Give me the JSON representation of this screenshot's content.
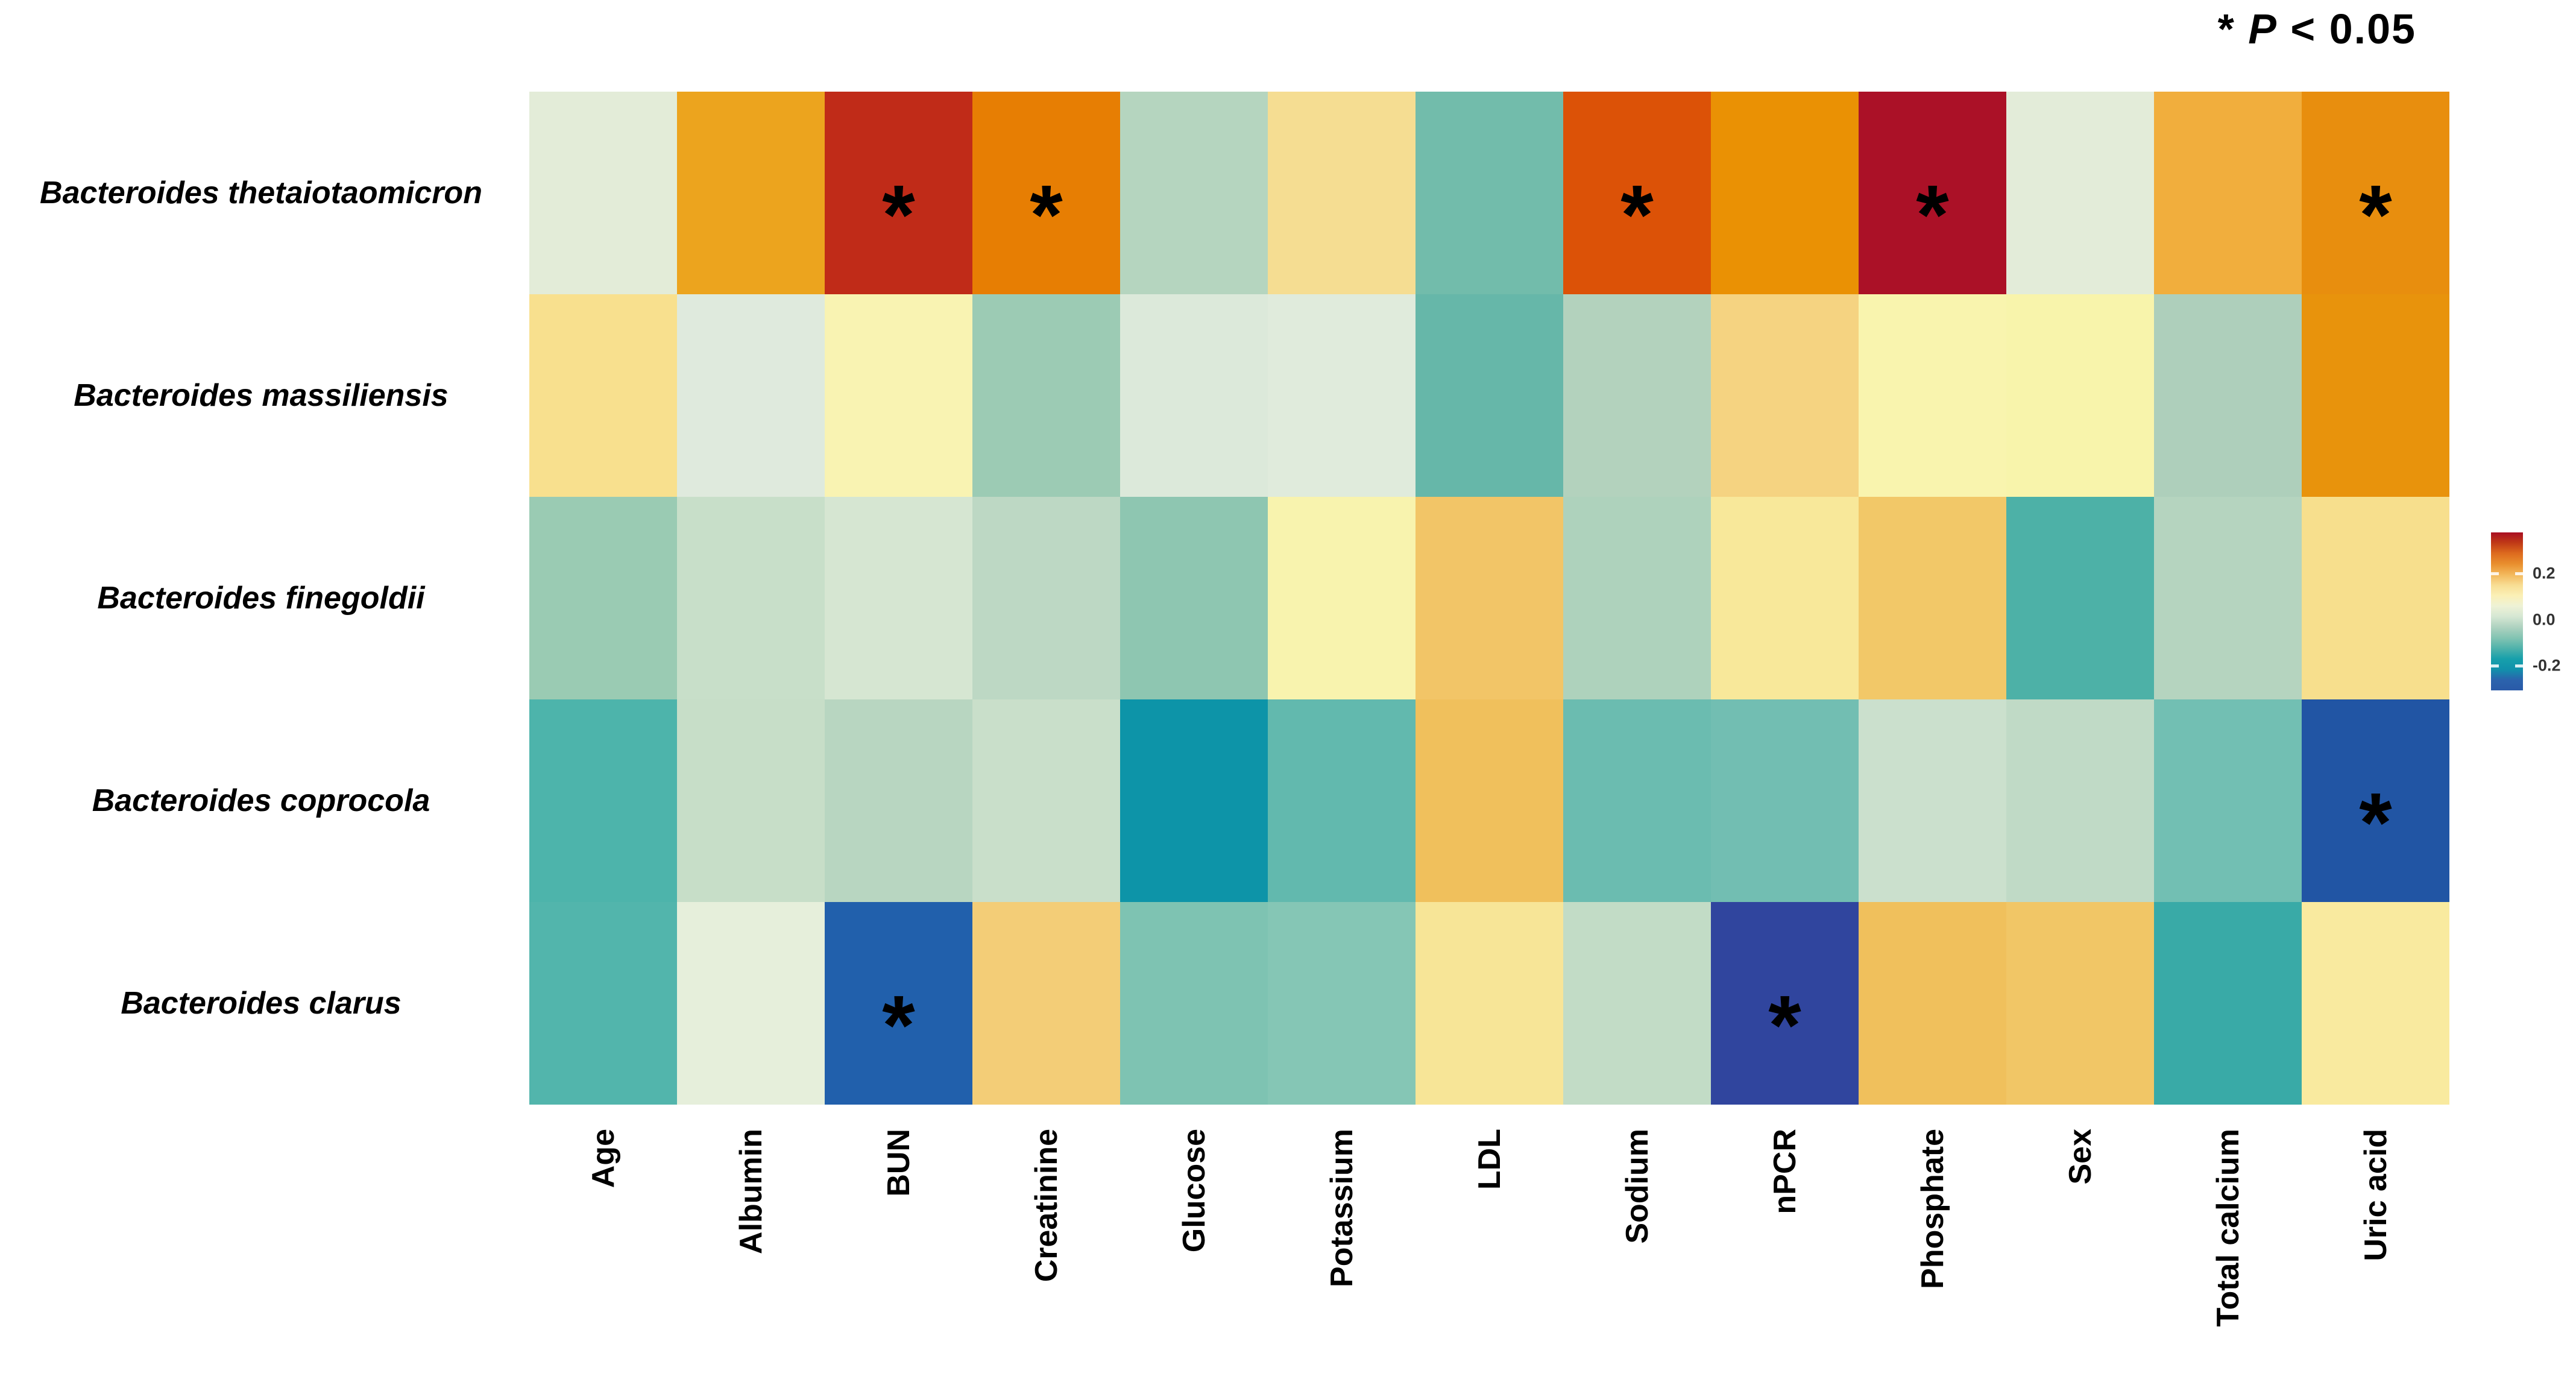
{
  "annotation": {
    "star": "*",
    "variable": "P",
    "comparison": "< 0.05"
  },
  "chart_data": {
    "type": "heatmap",
    "title": "",
    "legend_position": "right",
    "significance_marker": "*",
    "significance_note": "* P < 0.05",
    "rows": [
      "Bacteroides thetaiotaomicron",
      "Bacteroides massiliensis",
      "Bacteroides finegoldii",
      "Bacteroides coprocola",
      "Bacteroides clarus"
    ],
    "columns": [
      "Age",
      "Albumin",
      "BUN",
      "Creatinine",
      "Glucose",
      "Potassium",
      "LDL",
      "Sodium",
      "nPCR",
      "Phosphate",
      "Sex",
      "Total calcium",
      "Uric acid"
    ],
    "cell_colors": [
      [
        "#e3ecd8",
        "#eca41e",
        "#c02b18",
        "#e77e03",
        "#b5d5bf",
        "#f5dd92",
        "#72bcab",
        "#dc5207",
        "#ea9104",
        "#ab1127",
        "#e3ecd9",
        "#f1ae3d",
        "#e88e0e"
      ],
      [
        "#f8e08e",
        "#dfeadd",
        "#f9f3b2",
        "#9ccbb4",
        "#dce9da",
        "#e0ebdc",
        "#66b7a9",
        "#b3d2bd",
        "#f5d381",
        "#f9f4ae",
        "#f8f4ab",
        "#aecfbb",
        "#e8930c"
      ],
      [
        "#9acbb3",
        "#c8dfc9",
        "#d6e6d2",
        "#bdd8c4",
        "#8ec6b1",
        "#f8f3ae",
        "#f2c567",
        "#aed2bc",
        "#f8e89a",
        "#f2c868",
        "#4db1a7",
        "#b5d4bf",
        "#f7df8d"
      ],
      [
        "#4db4ab",
        "#c7dec8",
        "#b8d6c1",
        "#c9dfca",
        "#0d94a8",
        "#62b9ae",
        "#f0c05c",
        "#6bbcb0",
        "#72beb2",
        "#cbe0cd",
        "#c0dac6",
        "#72bfb3",
        "#2155a4"
      ],
      [
        "#52b5ac",
        "#e6efdb",
        "#2160ac",
        "#f3cd77",
        "#7ec3b2",
        "#85c6b5",
        "#f7e597",
        "#c2dcc6",
        "#30459e",
        "#f0c05c",
        "#f1c666",
        "#39aaa7",
        "#f9ea9f"
      ]
    ],
    "significant": [
      [
        false,
        false,
        true,
        true,
        false,
        false,
        false,
        true,
        false,
        true,
        false,
        false,
        true
      ],
      [
        false,
        false,
        false,
        false,
        false,
        false,
        false,
        false,
        false,
        false,
        false,
        false,
        false
      ],
      [
        false,
        false,
        false,
        false,
        false,
        false,
        false,
        false,
        false,
        false,
        false,
        false,
        false
      ],
      [
        false,
        false,
        false,
        false,
        false,
        false,
        false,
        false,
        false,
        false,
        false,
        false,
        true
      ],
      [
        false,
        false,
        true,
        false,
        false,
        false,
        false,
        false,
        true,
        false,
        false,
        false,
        false
      ]
    ],
    "estimated_values": [
      [
        -0.02,
        0.22,
        0.31,
        0.26,
        -0.08,
        0.08,
        -0.16,
        0.28,
        0.24,
        0.35,
        -0.02,
        0.17,
        0.24
      ],
      [
        0.09,
        -0.03,
        0.04,
        -0.12,
        -0.04,
        -0.03,
        -0.18,
        -0.09,
        0.11,
        0.04,
        0.04,
        -0.1,
        0.24
      ],
      [
        -0.12,
        -0.07,
        -0.05,
        -0.08,
        -0.13,
        0.04,
        0.13,
        -0.1,
        0.07,
        0.13,
        -0.21,
        -0.09,
        0.09
      ],
      [
        -0.21,
        -0.07,
        -0.09,
        -0.07,
        -0.27,
        -0.19,
        0.14,
        -0.18,
        -0.17,
        -0.06,
        -0.08,
        -0.17,
        -0.33
      ],
      [
        -0.2,
        -0.03,
        -0.32,
        0.12,
        -0.15,
        -0.14,
        0.08,
        -0.08,
        -0.36,
        0.14,
        0.13,
        -0.23,
        0.06
      ]
    ],
    "colorbar": {
      "ticks": [
        {
          "label": "0.2",
          "pos_pct": 26,
          "mark": true
        },
        {
          "label": "0.0",
          "pos_pct": 55.5,
          "mark": false
        },
        {
          "label": "-0.2",
          "pos_pct": 84.5,
          "mark": true
        }
      ],
      "gradient": [
        "#a90e22",
        "#c03a16",
        "#dd6b1e",
        "#e98f2e",
        "#f3b85c",
        "#f8dd93",
        "#fbf0b6",
        "#eef2d6",
        "#d5e7d3",
        "#aed2c0",
        "#83c4b3",
        "#4fb2ab",
        "#17a0ab",
        "#1191ab",
        "#2b63ad",
        "#2a5aa8"
      ]
    }
  }
}
